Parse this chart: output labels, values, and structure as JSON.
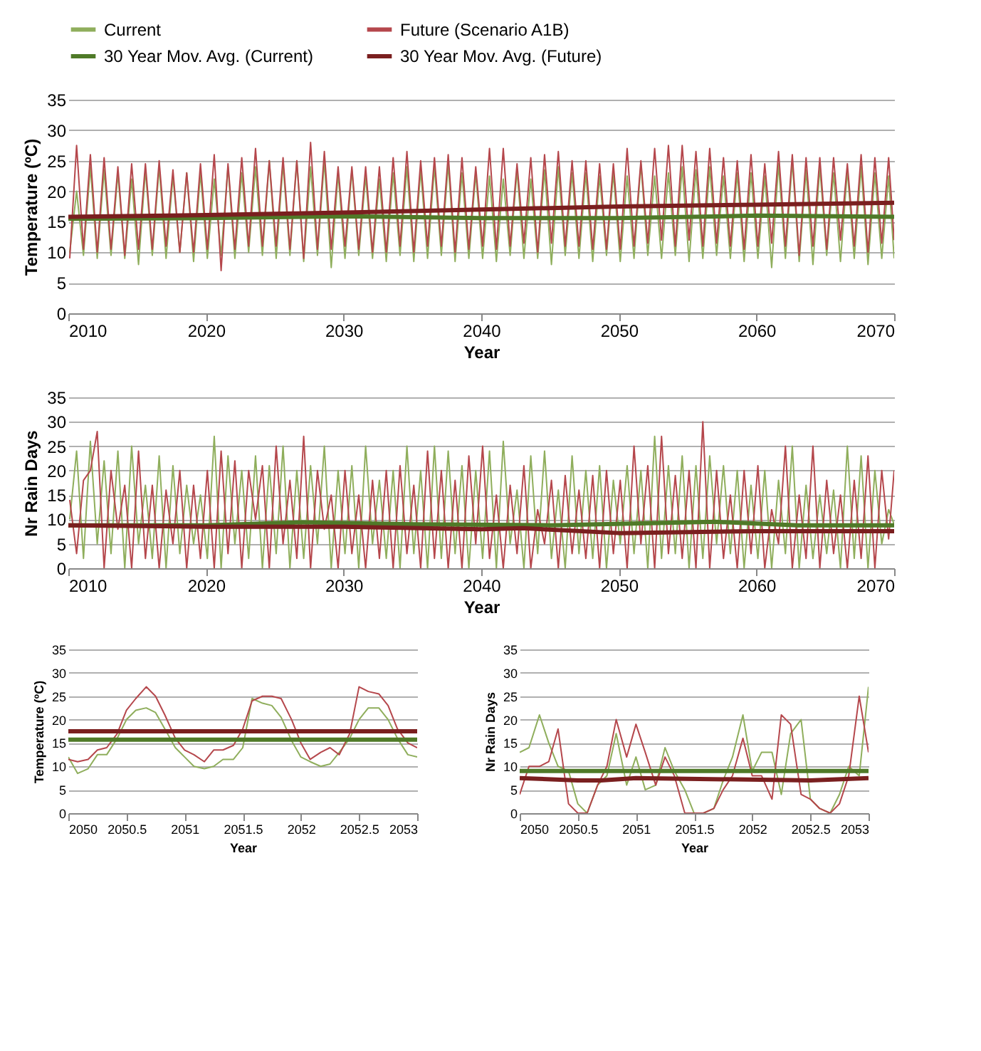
{
  "chart_data": [
    {
      "type": "line",
      "xlabel": "Year",
      "ylabel": "Temperature (ºC)",
      "xlim": [
        2010,
        2070
      ],
      "xticks": [
        2010,
        2020,
        2030,
        2040,
        2050,
        2060,
        2070
      ],
      "ylim": [
        0,
        35
      ],
      "yticks": [
        0,
        5,
        10,
        15,
        20,
        25,
        30,
        35
      ],
      "grid": "y",
      "legend": "top",
      "series": [
        {
          "name": "Current",
          "color": "#8fae5c",
          "x": [
            2010.1,
            2010.6,
            2011.1,
            2011.6,
            2012.1,
            2012.6,
            2013.1,
            2013.6,
            2014.1,
            2014.6,
            2015.1,
            2015.6,
            2016.1,
            2016.6,
            2017.1,
            2017.6,
            2018.1,
            2018.6,
            2019.1,
            2019.6,
            2020.1,
            2020.6,
            2021.1,
            2021.6,
            2022.1,
            2022.6,
            2023.1,
            2023.6,
            2024.1,
            2024.6,
            2025.1,
            2025.6,
            2026.1,
            2026.6,
            2027.1,
            2027.6,
            2028.1,
            2028.6,
            2029.1,
            2029.6,
            2030.1,
            2030.6,
            2031.1,
            2031.6,
            2032.1,
            2032.6,
            2033.1,
            2033.6,
            2034.1,
            2034.6,
            2035.1,
            2035.6,
            2036.1,
            2036.6,
            2037.1,
            2037.6,
            2038.1,
            2038.6,
            2039.1,
            2039.6,
            2040.1,
            2040.6,
            2041.1,
            2041.6,
            2042.1,
            2042.6,
            2043.1,
            2043.6,
            2044.1,
            2044.6,
            2045.1,
            2045.6,
            2046.1,
            2046.6,
            2047.1,
            2047.6,
            2048.1,
            2048.6,
            2049.1,
            2049.6,
            2050.1,
            2050.6,
            2051.1,
            2051.6,
            2052.1,
            2052.6,
            2053.1,
            2053.6,
            2054.1,
            2054.6,
            2055.1,
            2055.6,
            2056.1,
            2056.6,
            2057.1,
            2057.6,
            2058.1,
            2058.6,
            2059.1,
            2059.6,
            2060.1,
            2060.6,
            2061.1,
            2061.6,
            2062.1,
            2062.6,
            2063.1,
            2063.6,
            2064.1,
            2064.6,
            2065.1,
            2065.6,
            2066.1,
            2066.6,
            2067.1,
            2067.6,
            2068.1,
            2068.6,
            2069.1,
            2069.6,
            2070
          ],
          "values": [
            10,
            20,
            9.5,
            24,
            9,
            23.5,
            9.5,
            23,
            9,
            22,
            8,
            23.5,
            9.5,
            24,
            9,
            22.5,
            10,
            23,
            8.5,
            23,
            9,
            22,
            9.5,
            24,
            9,
            23,
            10,
            24,
            9.5,
            25,
            9,
            24.5,
            9.5,
            25,
            8.5,
            24,
            9.5,
            25,
            7.5,
            23,
            9,
            23.5,
            9.5,
            22.5,
            9,
            22,
            8.5,
            23,
            9.5,
            24,
            8.5,
            23.5,
            9,
            24,
            9.5,
            24.5,
            8.5,
            23,
            9,
            23,
            9,
            22.5,
            8.5,
            22,
            9.5,
            23.5,
            9,
            22,
            9,
            23.5,
            8,
            24,
            9.5,
            23,
            9,
            23,
            8.5,
            22.5,
            9.5,
            23,
            8.5,
            22.5,
            9,
            24.5,
            9.5,
            22.5,
            9,
            23,
            9.5,
            24,
            8.5,
            23.5,
            9,
            24,
            9.5,
            22.5,
            9,
            23,
            8.5,
            23,
            9,
            22.5,
            7.5,
            24.5,
            9,
            25,
            8.5,
            23.5,
            8,
            24,
            9.5,
            23,
            8.5,
            23.5,
            9,
            24,
            8,
            23,
            9,
            22.5,
            9
          ]
        },
        {
          "name": "Future (Scenario A1B)",
          "color": "#b5474c",
          "x": [
            2010.1,
            2010.6,
            2011.1,
            2011.6,
            2012.1,
            2012.6,
            2013.1,
            2013.6,
            2014.1,
            2014.6,
            2015.1,
            2015.6,
            2016.1,
            2016.6,
            2017.1,
            2017.6,
            2018.1,
            2018.6,
            2019.1,
            2019.6,
            2020.1,
            2020.6,
            2021.1,
            2021.6,
            2022.1,
            2022.6,
            2023.1,
            2023.6,
            2024.1,
            2024.6,
            2025.1,
            2025.6,
            2026.1,
            2026.6,
            2027.1,
            2027.6,
            2028.1,
            2028.6,
            2029.1,
            2029.6,
            2030.1,
            2030.6,
            2031.1,
            2031.6,
            2032.1,
            2032.6,
            2033.1,
            2033.6,
            2034.1,
            2034.6,
            2035.1,
            2035.6,
            2036.1,
            2036.6,
            2037.1,
            2037.6,
            2038.1,
            2038.6,
            2039.1,
            2039.6,
            2040.1,
            2040.6,
            2041.1,
            2041.6,
            2042.1,
            2042.6,
            2043.1,
            2043.6,
            2044.1,
            2044.6,
            2045.1,
            2045.6,
            2046.1,
            2046.6,
            2047.1,
            2047.6,
            2048.1,
            2048.6,
            2049.1,
            2049.6,
            2050.1,
            2050.6,
            2051.1,
            2051.6,
            2052.1,
            2052.6,
            2053.1,
            2053.6,
            2054.1,
            2054.6,
            2055.1,
            2055.6,
            2056.1,
            2056.6,
            2057.1,
            2057.6,
            2058.1,
            2058.6,
            2059.1,
            2059.6,
            2060.1,
            2060.6,
            2061.1,
            2061.6,
            2062.1,
            2062.6,
            2063.1,
            2063.6,
            2064.1,
            2064.6,
            2065.1,
            2065.6,
            2066.1,
            2066.6,
            2067.1,
            2067.6,
            2068.1,
            2068.6,
            2069.1,
            2069.6,
            2070
          ],
          "values": [
            9,
            27.5,
            10.5,
            26,
            10,
            25.5,
            10.5,
            24,
            9.5,
            24.5,
            10.5,
            24.5,
            10.5,
            25,
            11,
            23.5,
            10,
            23,
            10,
            24.5,
            10.5,
            26,
            7,
            24.5,
            10.5,
            25.5,
            11,
            27,
            11,
            25,
            11,
            25.5,
            10.5,
            25,
            9,
            28,
            10.5,
            26.5,
            10.5,
            24,
            11,
            24,
            10.5,
            24,
            10,
            24,
            10,
            25.5,
            11,
            26.5,
            10,
            25,
            11,
            25.5,
            11,
            26,
            10,
            25.5,
            10.5,
            24,
            11,
            27,
            10.5,
            27,
            11,
            24.5,
            11.5,
            25.5,
            10,
            26,
            11.5,
            26.5,
            11,
            25,
            11,
            25,
            10.5,
            24.5,
            10.5,
            24.5,
            10.5,
            27,
            11,
            25,
            11.5,
            27,
            12,
            27.5,
            11,
            27.5,
            12,
            26.5,
            11,
            27,
            11.5,
            25.5,
            11,
            25,
            10.5,
            26,
            11,
            24.5,
            11.5,
            26.5,
            11,
            26,
            9.5,
            25.5,
            11,
            25.5,
            10.5,
            25.5,
            12,
            24.5,
            11,
            26,
            10,
            25.5,
            11.5,
            25.5,
            12
          ]
        },
        {
          "name": "30 Year Mov. Avg. (Current)",
          "color": "#4f7a28",
          "x": [
            2010,
            2020,
            2030,
            2040,
            2050,
            2060,
            2070
          ],
          "values": [
            15.5,
            15.6,
            15.9,
            15.6,
            15.6,
            16,
            15.8
          ]
        },
        {
          "name": "30 Year Mov. Avg. (Future)",
          "color": "#7a1f1f",
          "x": [
            2010,
            2020,
            2030,
            2040,
            2050,
            2060,
            2070
          ],
          "values": [
            15.8,
            16.1,
            16.5,
            17,
            17.5,
            17.8,
            18.1
          ]
        }
      ]
    },
    {
      "type": "line",
      "xlabel": "Year",
      "ylabel": "Nr Rain Days",
      "xlim": [
        2010,
        2070
      ],
      "xticks": [
        2010,
        2020,
        2030,
        2040,
        2050,
        2060,
        2070
      ],
      "ylim": [
        0,
        35
      ],
      "yticks": [
        0,
        5,
        10,
        15,
        20,
        25,
        30,
        35
      ],
      "grid": "y",
      "series": [
        {
          "color": "#8fae5c",
          "x": [
            2010.1,
            2010.6,
            2011.1,
            2011.6,
            2012.1,
            2012.6,
            2013.1,
            2013.6,
            2014.1,
            2014.6,
            2015.1,
            2015.6,
            2016.1,
            2016.6,
            2017.1,
            2017.6,
            2018.1,
            2018.6,
            2019.1,
            2019.6,
            2020.1,
            2020.6,
            2021.1,
            2021.6,
            2022.1,
            2022.6,
            2023.1,
            2023.6,
            2024.1,
            2024.6,
            2025.1,
            2025.6,
            2026.1,
            2026.6,
            2027.1,
            2027.6,
            2028.1,
            2028.6,
            2029.1,
            2029.6,
            2030.1,
            2030.6,
            2031.1,
            2031.6,
            2032.1,
            2032.6,
            2033.1,
            2033.6,
            2034.1,
            2034.6,
            2035.1,
            2035.6,
            2036.1,
            2036.6,
            2037.1,
            2037.6,
            2038.1,
            2038.6,
            2039.1,
            2039.6,
            2040.1,
            2040.6,
            2041.1,
            2041.6,
            2042.1,
            2042.6,
            2043.1,
            2043.6,
            2044.1,
            2044.6,
            2045.1,
            2045.6,
            2046.1,
            2046.6,
            2047.1,
            2047.6,
            2048.1,
            2048.6,
            2049.1,
            2049.6,
            2050.1,
            2050.6,
            2051.1,
            2051.6,
            2052.1,
            2052.6,
            2053.1,
            2053.6,
            2054.1,
            2054.6,
            2055.1,
            2055.6,
            2056.1,
            2056.6,
            2057.1,
            2057.6,
            2058.1,
            2058.6,
            2059.1,
            2059.6,
            2060.1,
            2060.6,
            2061.1,
            2061.6,
            2062.1,
            2062.6,
            2063.1,
            2063.6,
            2064.1,
            2064.6,
            2065.1,
            2065.6,
            2066.1,
            2066.6,
            2067.1,
            2067.6,
            2068.1,
            2068.6,
            2069.1,
            2069.6,
            2070
          ],
          "values": [
            10,
            24,
            2,
            26,
            5,
            22,
            3,
            24,
            0,
            25,
            5,
            17,
            2,
            23,
            0,
            21,
            3,
            17,
            5,
            15,
            2,
            27,
            0,
            23,
            5,
            20,
            2,
            23,
            0,
            21,
            3,
            25,
            0,
            20,
            2,
            21,
            5,
            25,
            0,
            20,
            3,
            21,
            0,
            25,
            5,
            18,
            2,
            20,
            0,
            25,
            3,
            20,
            0,
            25,
            2,
            24,
            3,
            21,
            0,
            20,
            2,
            24,
            0,
            26,
            5,
            16,
            0,
            23,
            3,
            24,
            2,
            16,
            0,
            23,
            3,
            20,
            2,
            21,
            0,
            18,
            5,
            21,
            3,
            20,
            0,
            27,
            2,
            21,
            3,
            23,
            0,
            21,
            2,
            23,
            5,
            21,
            3,
            20,
            0,
            17,
            2,
            20,
            0,
            18,
            3,
            25,
            0,
            17,
            2,
            15,
            3,
            16,
            0,
            25,
            2,
            23,
            0,
            20,
            5,
            12,
            9
          ]
        },
        {
          "color": "#b5474c",
          "x": [
            2010.1,
            2010.6,
            2011.1,
            2011.6,
            2012.1,
            2012.6,
            2013.1,
            2013.6,
            2014.1,
            2014.6,
            2015.1,
            2015.6,
            2016.1,
            2016.6,
            2017.1,
            2017.6,
            2018.1,
            2018.6,
            2019.1,
            2019.6,
            2020.1,
            2020.6,
            2021.1,
            2021.6,
            2022.1,
            2022.6,
            2023.1,
            2023.6,
            2024.1,
            2024.6,
            2025.1,
            2025.6,
            2026.1,
            2026.6,
            2027.1,
            2027.6,
            2028.1,
            2028.6,
            2029.1,
            2029.6,
            2030.1,
            2030.6,
            2031.1,
            2031.6,
            2032.1,
            2032.6,
            2033.1,
            2033.6,
            2034.1,
            2034.6,
            2035.1,
            2035.6,
            2036.1,
            2036.6,
            2037.1,
            2037.6,
            2038.1,
            2038.6,
            2039.1,
            2039.6,
            2040.1,
            2040.6,
            2041.1,
            2041.6,
            2042.1,
            2042.6,
            2043.1,
            2043.6,
            2044.1,
            2044.6,
            2045.1,
            2045.6,
            2046.1,
            2046.6,
            2047.1,
            2047.6,
            2048.1,
            2048.6,
            2049.1,
            2049.6,
            2050.1,
            2050.6,
            2051.1,
            2051.6,
            2052.1,
            2052.6,
            2053.1,
            2053.6,
            2054.1,
            2054.6,
            2055.1,
            2055.6,
            2056.1,
            2056.6,
            2057.1,
            2057.6,
            2058.1,
            2058.6,
            2059.1,
            2059.6,
            2060.1,
            2060.6,
            2061.1,
            2061.6,
            2062.1,
            2062.6,
            2063.1,
            2063.6,
            2064.1,
            2064.6,
            2065.1,
            2065.6,
            2066.1,
            2066.6,
            2067.1,
            2067.6,
            2068.1,
            2068.6,
            2069.1,
            2069.6,
            2070
          ],
          "values": [
            14,
            3,
            18,
            20,
            28,
            0,
            20,
            8,
            17,
            0,
            24,
            2,
            17,
            0,
            16,
            5,
            20,
            0,
            17,
            2,
            20,
            0,
            24,
            3,
            22,
            0,
            20,
            10,
            21,
            0,
            25,
            5,
            18,
            2,
            27,
            0,
            20,
            8,
            15,
            0,
            20,
            3,
            15,
            0,
            18,
            2,
            20,
            0,
            21,
            3,
            17,
            0,
            24,
            2,
            20,
            0,
            18,
            0,
            23,
            5,
            25,
            2,
            15,
            0,
            17,
            3,
            21,
            0,
            12,
            5,
            18,
            0,
            19,
            3,
            16,
            2,
            19,
            0,
            20,
            3,
            18,
            0,
            25,
            5,
            21,
            0,
            27,
            3,
            19,
            2,
            20,
            0,
            30,
            0,
            20,
            2,
            15,
            0,
            20,
            3,
            21,
            0,
            12,
            5,
            25,
            0,
            15,
            2,
            25,
            0,
            18,
            3,
            15,
            0,
            18,
            2,
            23,
            0,
            20,
            6,
            20
          ]
        },
        {
          "color": "#4f7a28",
          "x": [
            2010,
            2020,
            2027,
            2035,
            2045,
            2057,
            2063,
            2070
          ],
          "values": [
            8.8,
            8.8,
            9.4,
            9,
            8.8,
            9.5,
            8.8,
            8.8
          ]
        },
        {
          "color": "#7a1f1f",
          "x": [
            2010,
            2020,
            2030,
            2040,
            2043,
            2050,
            2060,
            2070
          ],
          "values": [
            8.8,
            8.5,
            8.5,
            8,
            8.2,
            7.2,
            7.6,
            7.6
          ]
        }
      ]
    },
    {
      "type": "line",
      "xlabel": "Year",
      "ylabel": "Temperature (ºC)",
      "xlim": [
        2050,
        2053
      ],
      "xticks": [
        2050,
        2050.5,
        2051,
        2051.5,
        2052,
        2052.5,
        2053
      ],
      "ylim": [
        0,
        35
      ],
      "yticks": [
        0,
        5,
        10,
        15,
        20,
        25,
        30,
        35
      ],
      "grid": "y",
      "series": [
        {
          "color": "#8fae5c",
          "x": [
            2050,
            2050.08,
            2050.17,
            2050.25,
            2050.33,
            2050.42,
            2050.5,
            2050.58,
            2050.67,
            2050.75,
            2050.83,
            2050.92,
            2051,
            2051.08,
            2051.17,
            2051.25,
            2051.33,
            2051.42,
            2051.5,
            2051.58,
            2051.67,
            2051.75,
            2051.83,
            2051.92,
            2052,
            2052.08,
            2052.17,
            2052.25,
            2052.33,
            2052.42,
            2052.5,
            2052.58,
            2052.67,
            2052.75,
            2052.83,
            2052.92,
            2053
          ],
          "values": [
            12,
            8.5,
            9.5,
            12.5,
            12.5,
            16,
            20,
            22,
            22.5,
            21.5,
            18,
            14,
            12,
            10,
            9.5,
            10,
            11.5,
            11.5,
            14,
            24.5,
            23.5,
            23,
            20.5,
            15.5,
            12,
            11,
            10,
            10.5,
            13,
            16,
            20,
            22.5,
            22.5,
            20,
            16,
            12.5,
            12
          ]
        },
        {
          "color": "#b5474c",
          "x": [
            2050,
            2050.08,
            2050.17,
            2050.25,
            2050.33,
            2050.42,
            2050.5,
            2050.58,
            2050.67,
            2050.75,
            2050.83,
            2050.92,
            2051,
            2051.08,
            2051.17,
            2051.25,
            2051.33,
            2051.42,
            2051.5,
            2051.58,
            2051.67,
            2051.75,
            2051.83,
            2051.92,
            2052,
            2052.08,
            2052.17,
            2052.25,
            2052.33,
            2052.42,
            2052.5,
            2052.58,
            2052.67,
            2052.75,
            2052.83,
            2052.92,
            2053
          ],
          "values": [
            11.5,
            11,
            11.5,
            13.5,
            14,
            17,
            22,
            24.5,
            27,
            25,
            21,
            16,
            13.5,
            12.5,
            11,
            13.5,
            13.5,
            14.5,
            18,
            24,
            25,
            25,
            24.5,
            20,
            15,
            11.5,
            13,
            14,
            12.5,
            17,
            27,
            26,
            25.5,
            23,
            18,
            15,
            14
          ]
        },
        {
          "color": "#4f7a28",
          "x": [
            2050,
            2053
          ],
          "values": [
            15.7,
            15.7
          ]
        },
        {
          "color": "#7a1f1f",
          "x": [
            2050,
            2053
          ],
          "values": [
            17.5,
            17.5
          ]
        }
      ]
    },
    {
      "type": "line",
      "xlabel": "Year",
      "ylabel": "Nr Rain Days",
      "xlim": [
        2050,
        2053
      ],
      "xticks": [
        2050,
        2050.5,
        2051,
        2051.5,
        2052,
        2052.5,
        2053
      ],
      "ylim": [
        0,
        35
      ],
      "yticks": [
        0,
        5,
        10,
        15,
        20,
        25,
        30,
        35
      ],
      "grid": "y",
      "series": [
        {
          "color": "#8fae5c",
          "x": [
            2050,
            2050.08,
            2050.17,
            2050.25,
            2050.33,
            2050.42,
            2050.5,
            2050.58,
            2050.67,
            2050.75,
            2050.83,
            2050.92,
            2051,
            2051.08,
            2051.17,
            2051.25,
            2051.33,
            2051.42,
            2051.5,
            2051.58,
            2051.67,
            2051.75,
            2051.83,
            2051.92,
            2052,
            2052.08,
            2052.17,
            2052.25,
            2052.33,
            2052.42,
            2052.5,
            2052.58,
            2052.67,
            2052.75,
            2052.83,
            2052.92,
            2053
          ],
          "values": [
            13,
            14,
            21,
            15,
            10,
            9,
            2,
            0,
            6,
            8,
            17,
            6,
            12,
            5,
            6,
            14,
            9,
            5,
            0,
            0,
            1,
            7,
            12,
            21,
            9,
            13,
            13,
            4,
            17,
            20,
            3,
            1,
            0,
            4,
            10,
            8,
            27
          ]
        },
        {
          "color": "#b5474c",
          "x": [
            2050,
            2050.08,
            2050.17,
            2050.25,
            2050.33,
            2050.42,
            2050.5,
            2050.58,
            2050.67,
            2050.75,
            2050.83,
            2050.92,
            2051,
            2051.08,
            2051.17,
            2051.25,
            2051.33,
            2051.42,
            2051.5,
            2051.58,
            2051.67,
            2051.75,
            2051.83,
            2051.92,
            2052,
            2052.08,
            2052.17,
            2052.25,
            2052.33,
            2052.42,
            2052.5,
            2052.58,
            2052.67,
            2052.75,
            2052.83,
            2052.92,
            2053
          ],
          "values": [
            4,
            10,
            10,
            11,
            18,
            2,
            0,
            0,
            6,
            10,
            20,
            12,
            19,
            13,
            6,
            12,
            8,
            0,
            0,
            0,
            1,
            5,
            8,
            16,
            8,
            8,
            3,
            21,
            19,
            4,
            3,
            1,
            0,
            2,
            8,
            25,
            13
          ]
        },
        {
          "color": "#4f7a28",
          "x": [
            2050,
            2053
          ],
          "values": [
            9,
            9
          ]
        },
        {
          "color": "#7a1f1f",
          "x": [
            2050,
            2050.5,
            2050.7,
            2051,
            2052.5,
            2053
          ],
          "values": [
            7.5,
            7,
            7,
            7.5,
            7,
            7.5
          ]
        }
      ]
    }
  ]
}
